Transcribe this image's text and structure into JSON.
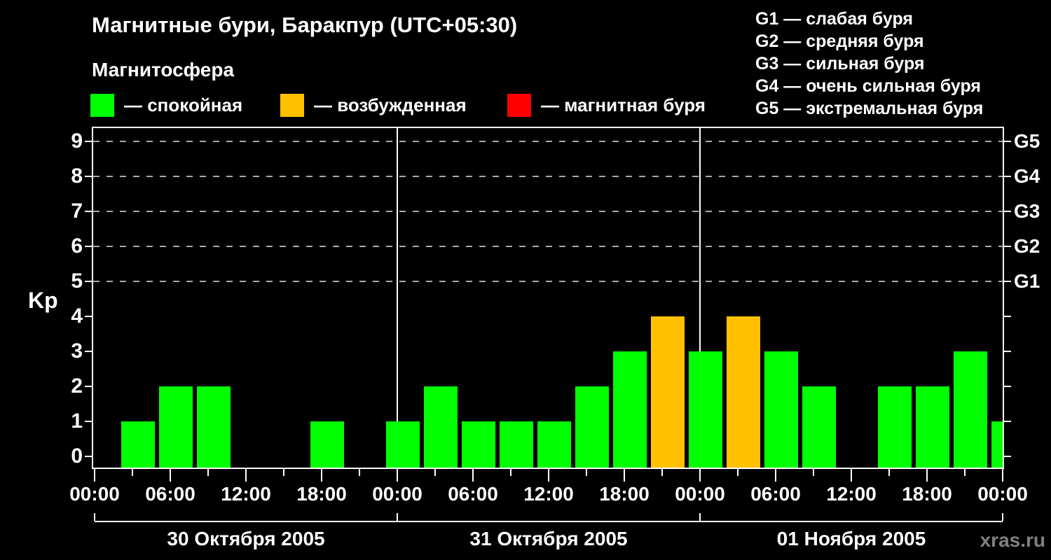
{
  "title": "Магнитные бури, Баракпур (UTC+05:30)",
  "subtitle": "Магнитосфера",
  "legend": {
    "items": [
      {
        "key": "quiet",
        "label": "— спокойная",
        "color": "#00ff00"
      },
      {
        "key": "excited",
        "label": "— возбужденная",
        "color": "#ffc000"
      },
      {
        "key": "storm",
        "label": "— магнитная буря",
        "color": "#ff0000"
      }
    ]
  },
  "storm_scale_legend": [
    "G1 — слабая буря",
    "G2 — средняя буря",
    "G3 — сильная буря",
    "G4 — очень сильная буря",
    "G5 — экстремальная буря"
  ],
  "watermark": "xras.ru",
  "chart_data": {
    "type": "bar",
    "title": "Магнитные бури, Баракпур (UTC+05:30)",
    "ylabel": "Kp",
    "ylim": [
      0,
      9
    ],
    "y_ticks": [
      0,
      1,
      2,
      3,
      4,
      5,
      6,
      7,
      8,
      9
    ],
    "grid_levels_kp": [
      5,
      6,
      7,
      8,
      9
    ],
    "grid": "dashed horizontal lines at Kp 5-9 only",
    "right_axis": [
      {
        "kp": 5,
        "label": "G1"
      },
      {
        "kp": 6,
        "label": "G2"
      },
      {
        "kp": 7,
        "label": "G3"
      },
      {
        "kp": 8,
        "label": "G4"
      },
      {
        "kp": 9,
        "label": "G5"
      }
    ],
    "hours_per_bar": 3,
    "x_major_tick_labels": [
      "00:00",
      "06:00",
      "12:00",
      "18:00",
      "00:00",
      "06:00",
      "12:00",
      "18:00",
      "00:00",
      "06:00",
      "12:00",
      "18:00",
      "00:00"
    ],
    "days": [
      {
        "date": "30 Октября 2005",
        "kp_values": [
          0,
          1,
          2,
          2,
          0,
          0,
          1,
          0
        ]
      },
      {
        "date": "31 Октября 2005",
        "kp_values": [
          1,
          2,
          1,
          1,
          1,
          2,
          3,
          4
        ]
      },
      {
        "date": "01 Ноября 2005",
        "kp_values": [
          3,
          4,
          3,
          2,
          0,
          2,
          2,
          3
        ]
      }
    ],
    "next_day_partial_kp": 1,
    "colors": {
      "quiet": "#00ff00",
      "excited": "#ffc000",
      "storm": "#ff0000"
    },
    "color_thresholds": {
      "excited_at_kp": 4,
      "storm_at_kp": 5
    },
    "legend_position": "top"
  }
}
